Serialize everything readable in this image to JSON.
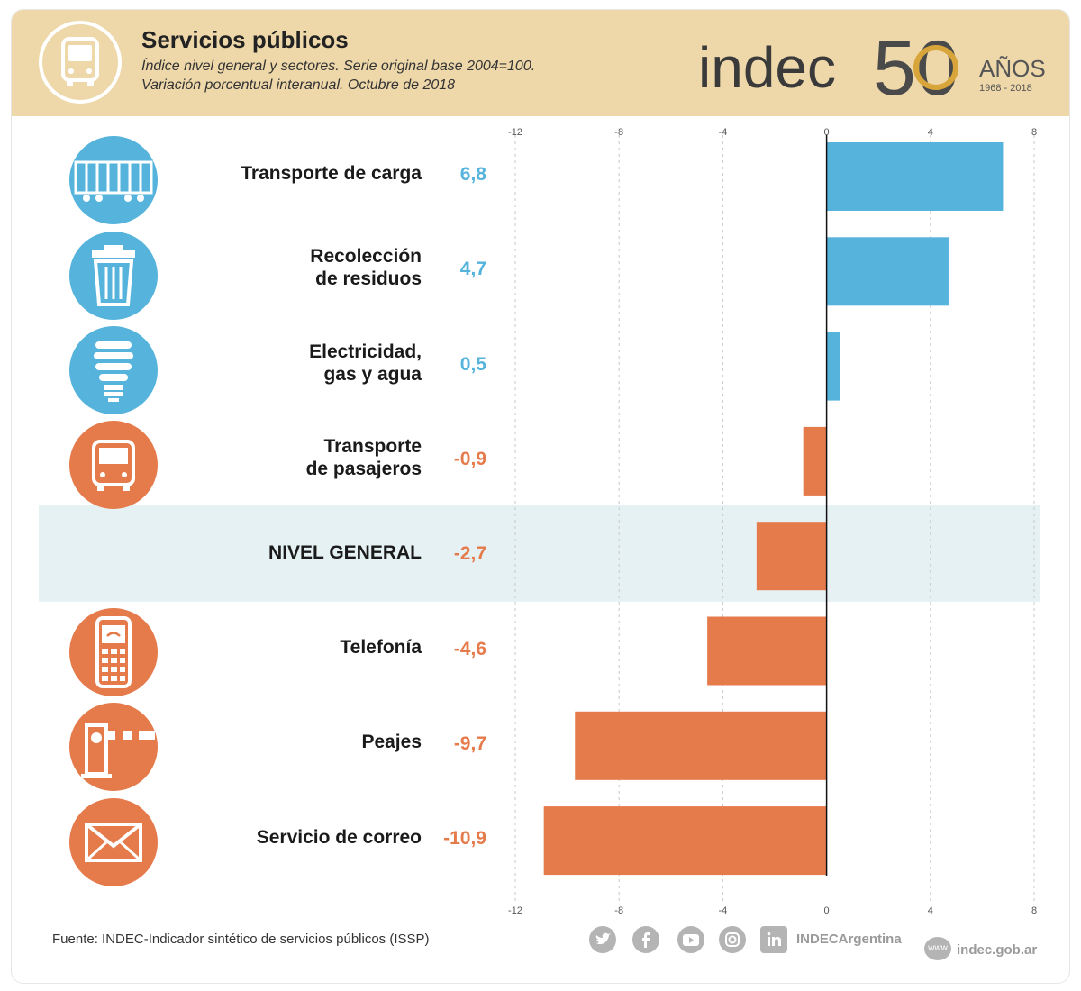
{
  "header": {
    "title": "Servicios públicos",
    "subtitle_line1": "Índice nivel general y sectores. Serie original base 2004=100.",
    "subtitle_line2": "Variación porcentual interanual. Octubre de 2018",
    "brand_name": "indec",
    "brand_anniversary": "50",
    "brand_years": "AÑOS",
    "brand_range": "1968 - 2018"
  },
  "colors": {
    "positive": "#55b3dc",
    "negative": "#e57a4b",
    "highlight": "#e6f1f3",
    "header_bg": "#eed8aa"
  },
  "chart_data": {
    "type": "bar",
    "orientation": "horizontal",
    "title": "Servicios públicos",
    "subtitle": "Índice nivel general y sectores. Serie original base 2004=100. Variación porcentual interanual. Octubre de 2018",
    "categories": [
      "Transporte de carga",
      "Recolección de residuos",
      "Electricidad, gas y agua",
      "Transporte de pasajeros",
      "NIVEL GENERAL",
      "Telefonía",
      "Peajes",
      "Servicio de correo"
    ],
    "label_lines": [
      [
        "Transporte de carga"
      ],
      [
        "Recolección",
        "de residuos"
      ],
      [
        "Electricidad,",
        "gas y agua"
      ],
      [
        "Transporte",
        "de pasajeros"
      ],
      [
        "NIVEL GENERAL"
      ],
      [
        "Telefonía"
      ],
      [
        "Peajes"
      ],
      [
        "Servicio de correo"
      ]
    ],
    "values": [
      6.8,
      4.7,
      0.5,
      -0.9,
      -2.7,
      -4.6,
      -9.7,
      -10.9
    ],
    "value_labels": [
      "6,8",
      "4,7",
      "0,5",
      "-0,9",
      "-2,7",
      "-4,6",
      "-9,7",
      "-10,9"
    ],
    "icons": [
      "freight-wagon-icon",
      "trash-bin-icon",
      "light-bulb-icon",
      "bus-icon",
      "",
      "mobile-phone-icon",
      "toll-barrier-icon",
      "envelope-icon"
    ],
    "highlight_index": 4,
    "xlim": [
      -12,
      8
    ],
    "ticks": [
      -12,
      -8,
      -4,
      0,
      4,
      8
    ],
    "tick_labels": [
      "-12",
      "-8",
      "-4",
      "0",
      "4",
      "8"
    ],
    "grid": "vertical dashed"
  },
  "footer": {
    "source": "Fuente: INDEC-Indicador sintético de servicios públicos (ISSP)",
    "social": [
      "twitter-icon",
      "facebook-icon",
      "youtube-icon",
      "instagram-icon",
      "linkedin-icon"
    ],
    "handle": "INDECArgentina",
    "web_badge": "www",
    "website": "indec.gob.ar"
  }
}
